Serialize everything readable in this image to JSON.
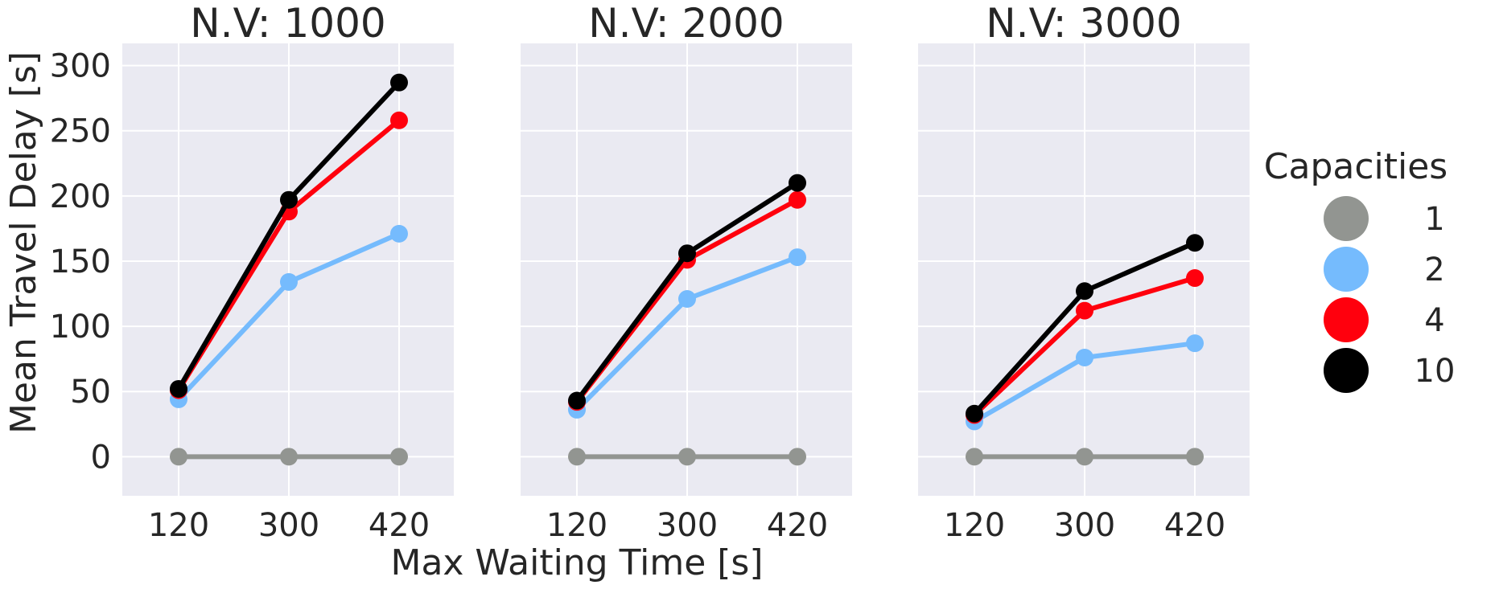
{
  "chart_data": {
    "type": "line",
    "xlabel": "Max Waiting Time [s]",
    "ylabel": "Mean Travel Delay [s]",
    "categories": [
      "120",
      "300",
      "420"
    ],
    "ylim": [
      -30,
      317
    ],
    "yticks": [
      0,
      50,
      100,
      150,
      200,
      250,
      300
    ],
    "grid": true,
    "legend": {
      "title": "Capacities",
      "placement": "right",
      "entries": [
        "1",
        "2",
        "4",
        "10"
      ]
    },
    "panels": [
      {
        "title": "N.V: 1000",
        "series": [
          {
            "name": "1",
            "color": "#929591",
            "values": [
              0,
              0,
              0
            ]
          },
          {
            "name": "2",
            "color": "#75bbfd",
            "values": [
              44,
              134,
              171
            ]
          },
          {
            "name": "4",
            "color": "#ff000d",
            "values": [
              51,
              188,
              258
            ]
          },
          {
            "name": "10",
            "color": "#000000",
            "values": [
              52,
              197,
              287
            ]
          }
        ]
      },
      {
        "title": "N.V: 2000",
        "series": [
          {
            "name": "1",
            "color": "#929591",
            "values": [
              0,
              0,
              0
            ]
          },
          {
            "name": "2",
            "color": "#75bbfd",
            "values": [
              36,
              121,
              153
            ]
          },
          {
            "name": "4",
            "color": "#ff000d",
            "values": [
              42,
              151,
              197
            ]
          },
          {
            "name": "10",
            "color": "#000000",
            "values": [
              43,
              156,
              210
            ]
          }
        ]
      },
      {
        "title": "N.V: 3000",
        "series": [
          {
            "name": "1",
            "color": "#929591",
            "values": [
              0,
              0,
              0
            ]
          },
          {
            "name": "2",
            "color": "#75bbfd",
            "values": [
              27,
              76,
              87
            ]
          },
          {
            "name": "4",
            "color": "#ff000d",
            "values": [
              32,
              112,
              137
            ]
          },
          {
            "name": "10",
            "color": "#000000",
            "values": [
              33,
              127,
              164
            ]
          }
        ]
      }
    ]
  }
}
